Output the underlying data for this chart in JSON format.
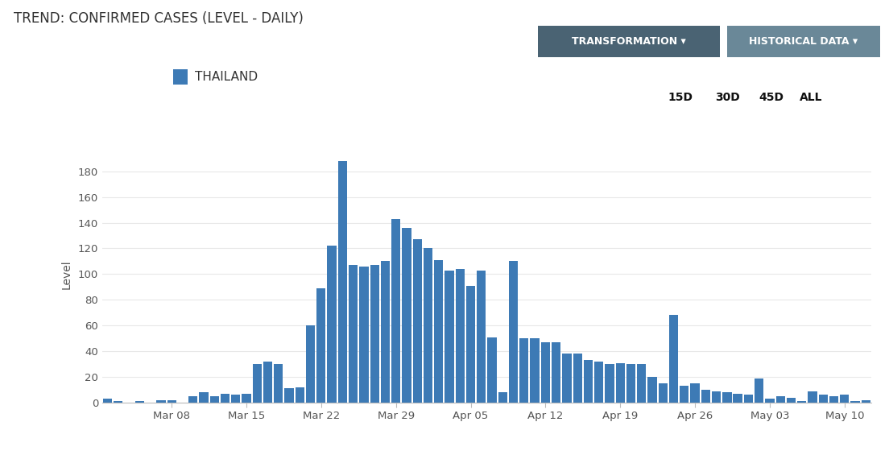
{
  "title": "TREND: CONFIRMED CASES (LEVEL - DAILY)",
  "ylabel": "Level",
  "bar_color": "#3d7ab5",
  "background_color": "#ffffff",
  "legend_label": "THAILAND",
  "legend_color": "#3d7ab5",
  "buttons": [
    "15D",
    "30D",
    "45D",
    "ALL"
  ],
  "transformation_btn": "TRANSFORMATION ▾",
  "historical_btn": "HISTORICAL DATA ▾",
  "values": [
    3,
    1,
    0,
    1,
    0,
    2,
    2,
    0,
    5,
    8,
    5,
    7,
    6,
    7,
    30,
    32,
    30,
    11,
    12,
    60,
    89,
    122,
    188,
    107,
    106,
    107,
    110,
    143,
    136,
    127,
    120,
    111,
    103,
    104,
    91,
    103,
    51,
    8,
    110,
    50,
    50,
    47,
    47,
    38,
    38,
    33,
    32,
    30,
    31,
    30,
    30,
    20,
    15,
    68,
    13,
    15,
    10,
    9,
    8,
    7,
    6,
    19,
    3,
    5,
    4,
    1,
    9,
    6,
    5,
    6,
    1,
    2
  ],
  "xtick_labels": [
    "Mar 08",
    "Mar 15",
    "Mar 22",
    "Mar 29",
    "Apr 05",
    "Apr 12",
    "Apr 19",
    "Apr 26",
    "May 03",
    "May 10"
  ],
  "xtick_positions": [
    6,
    13,
    20,
    27,
    34,
    41,
    48,
    55,
    62,
    69
  ],
  "ylim": [
    0,
    200
  ],
  "yticks": [
    0,
    20,
    40,
    60,
    80,
    100,
    120,
    140,
    160,
    180
  ],
  "title_fontsize": 12,
  "axis_label_fontsize": 10,
  "tick_fontsize": 9.5
}
